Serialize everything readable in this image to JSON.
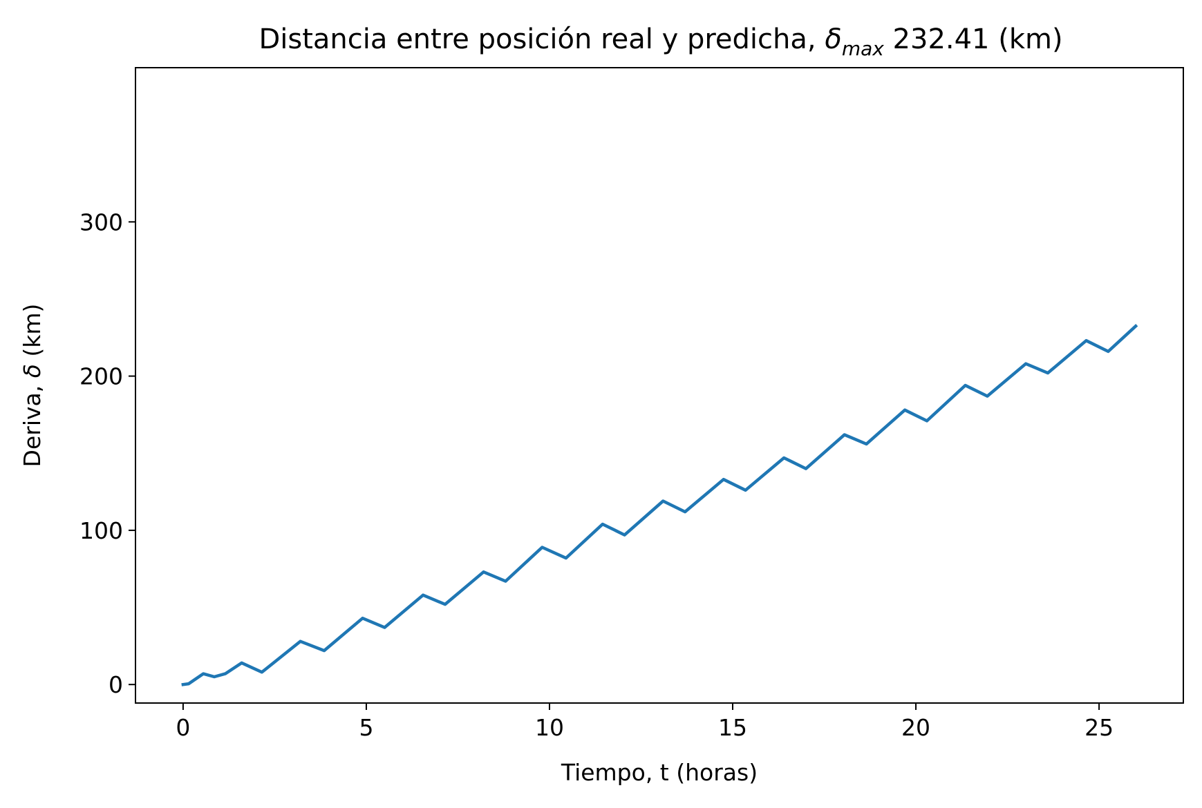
{
  "chart_data": {
    "type": "line",
    "title": {
      "prefix": "Distancia entre posición real y predicha, ",
      "symbol": "δ",
      "subscript": "max",
      "suffix": " 232.41 (km)"
    },
    "xlabel": "Tiempo, t (horas)",
    "ylabel": {
      "prefix": "Deriva, ",
      "symbol": "δ",
      "suffix": " (km)"
    },
    "xlim": [
      -1.3,
      27.3
    ],
    "ylim": [
      -12,
      400
    ],
    "xticks": [
      0,
      5,
      10,
      15,
      20,
      25
    ],
    "xtick_labels": [
      "0",
      "5",
      "10",
      "15",
      "20",
      "25"
    ],
    "yticks": [
      0,
      100,
      200,
      300
    ],
    "ytick_labels": [
      "0",
      "100",
      "200",
      "300"
    ],
    "grid": false,
    "series": [
      {
        "color": "#1f77b4",
        "x": [
          0,
          0.15,
          0.55,
          0.85,
          1.15,
          1.6,
          2.15,
          3.2,
          3.85,
          4.9,
          5.5,
          6.55,
          7.15,
          8.2,
          8.8,
          9.8,
          10.45,
          11.45,
          12.05,
          13.1,
          13.7,
          14.75,
          15.35,
          16.4,
          17.0,
          18.05,
          18.65,
          19.7,
          20.3,
          21.35,
          21.95,
          23.0,
          23.6,
          24.65,
          25.25,
          26.0
        ],
        "y": [
          0,
          0.5,
          7,
          5,
          7,
          14,
          8,
          28,
          22,
          43,
          37,
          58,
          52,
          73,
          67,
          89,
          82,
          104,
          97,
          119,
          112,
          133,
          126,
          147,
          140,
          162,
          156,
          178,
          171,
          194,
          187,
          208,
          202,
          223,
          216,
          232.41
        ]
      }
    ]
  }
}
